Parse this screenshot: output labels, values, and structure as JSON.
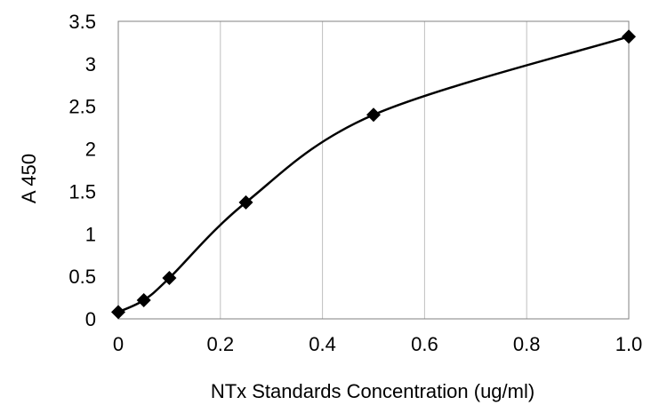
{
  "chart_data": {
    "type": "line",
    "title": "",
    "xlabel": "NTx Standards Concentration (ug/ml)",
    "ylabel": "A 450",
    "xlim": [
      0,
      1.0
    ],
    "ylim": [
      0,
      3.5
    ],
    "x_tick_values": [
      0,
      0.2,
      0.4,
      0.6,
      0.8,
      1.0
    ],
    "x_tick_labels": [
      "0",
      "0.2",
      "0.4",
      "0.6",
      "0.8",
      "1.0"
    ],
    "y_tick_values": [
      0,
      0.5,
      1,
      1.5,
      2,
      2.5,
      3,
      3.5
    ],
    "y_tick_labels": [
      "0",
      "0.5",
      "1",
      "1.5",
      "2",
      "2.5",
      "3",
      "3.5"
    ],
    "grid": "vertical",
    "legend": "none",
    "smoothed": true,
    "marker": "diamond",
    "colors": {
      "line": "#000000",
      "marker": "#000000",
      "grid": "#bfbfbf",
      "frame": "#808080"
    },
    "series": [
      {
        "x": [
          0,
          0.05,
          0.1,
          0.25,
          0.5,
          1.0
        ],
        "y": [
          0.08,
          0.22,
          0.48,
          1.37,
          2.4,
          3.32
        ]
      }
    ]
  }
}
